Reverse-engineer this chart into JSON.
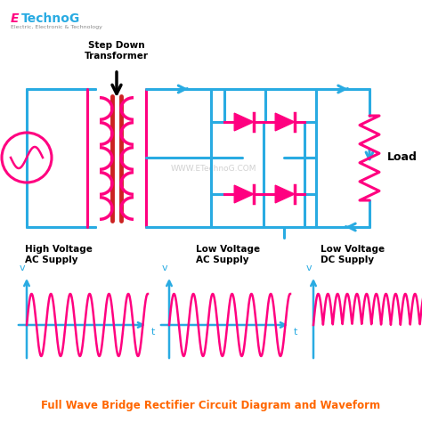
{
  "bg_color": "#ffffff",
  "cyan": "#29ABE2",
  "pink": "#FF0080",
  "orange": "#FF6600",
  "title": "Full Wave Bridge Rectifier Circuit Diagram and Waveform",
  "label1": "High Voltage\nAC Supply",
  "label2": "Low Voltage\nAC Supply",
  "label3": "Low Voltage\nDC Supply",
  "transformer_label": "Step Down\nTransformer",
  "load_label": "Load",
  "watermark": "WWW.ETechnoG.COM",
  "logo_e": "E",
  "logo_technog": "TechnoG",
  "logo_sub": "Electric, Electronic & Technology"
}
